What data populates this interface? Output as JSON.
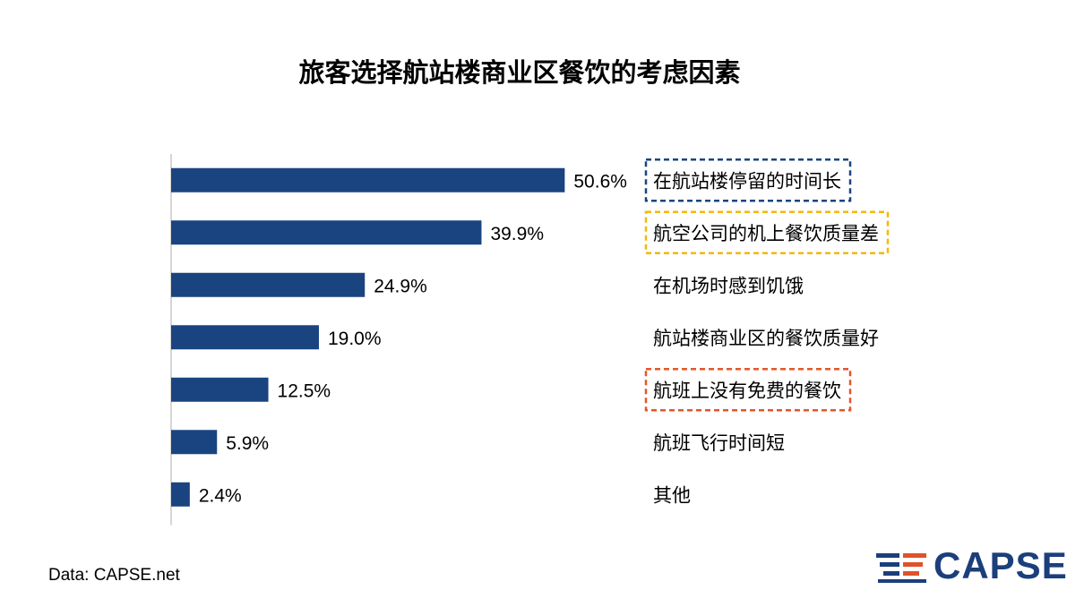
{
  "title": "旅客选择航站楼商业区餐饮的考虑因素",
  "source": "Data: CAPSE.net",
  "logo": {
    "text": "CAPSE",
    "mark_colors": [
      "#1b3f7b",
      "#e0522a"
    ]
  },
  "colors": {
    "bar": "#1a4480",
    "axis": "#c8c8c8",
    "highlight_blue": "#1a4480",
    "highlight_yellow": "#f5b800",
    "highlight_orange": "#e2572b"
  },
  "chart_data": {
    "type": "bar",
    "orientation": "horizontal",
    "categories": [
      "在航站楼停留的时间长",
      "航空公司的机上餐饮质量差",
      "在机场时感到饥饿",
      "航站楼商业区的餐饮质量好",
      "航班上没有免费的餐饮",
      "航班飞行时间短",
      "其他"
    ],
    "values": [
      50.6,
      39.9,
      24.9,
      19.0,
      12.5,
      5.9,
      2.4
    ],
    "value_labels": [
      "50.6%",
      "39.9%",
      "24.9%",
      "19.0%",
      "12.5%",
      "5.9%",
      "2.4%"
    ],
    "highlights": [
      "blue",
      "yellow",
      "",
      "",
      "orange",
      "",
      ""
    ],
    "xlim": [
      0,
      60
    ],
    "grid": false,
    "title": "旅客选择航站楼商业区餐饮的考虑因素"
  }
}
